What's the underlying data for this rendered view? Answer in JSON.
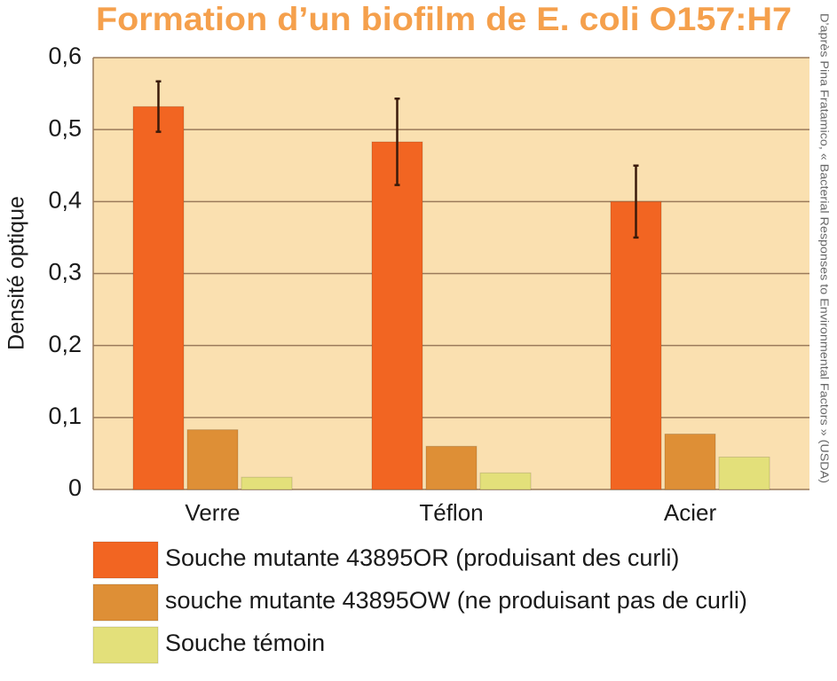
{
  "chart_data": {
    "type": "bar",
    "title": "Formation d’un biofilm de E. coli O157:H7",
    "y_label": "Densité optique",
    "source": "D’après Pina Fratamico, « Bacterial Responses to Environmental Factors » (USDA)",
    "categories": [
      "Verre",
      "Téflon",
      "Acier"
    ],
    "series": [
      {
        "name": "Souche mutante 43895OR (produisant des curli)",
        "color": "#f26522",
        "values": [
          0.532,
          0.483,
          0.4
        ],
        "errors": [
          0.035,
          0.06,
          0.05
        ]
      },
      {
        "name": "souche mutante 43895OW (ne produisant pas de curli)",
        "color": "#de8f36",
        "values": [
          0.083,
          0.06,
          0.077
        ]
      },
      {
        "name": "Souche témoin",
        "color": "#e3e07a",
        "values": [
          0.017,
          0.023,
          0.045
        ]
      }
    ],
    "ylim": [
      0,
      0.6
    ],
    "yticks": [
      0,
      {
        "value": 0.1,
        "label": "0,1"
      },
      {
        "value": 0.2,
        "label": "0,2"
      },
      {
        "value": 0.3,
        "label": "0,3"
      },
      {
        "value": 0.4,
        "label": "0,4"
      },
      {
        "value": 0.5,
        "label": "0,5"
      },
      {
        "value": 0.6,
        "label": "0,6"
      }
    ],
    "grid": true
  }
}
